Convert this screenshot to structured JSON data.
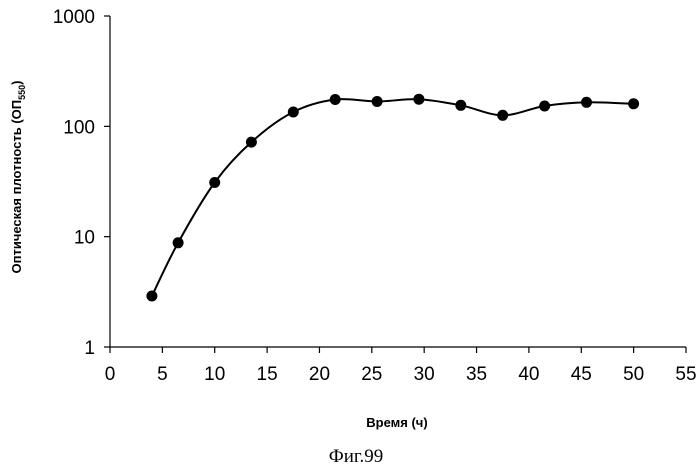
{
  "chart_data": {
    "type": "line",
    "y_scale": "log",
    "x": [
      4,
      6.5,
      10,
      13.5,
      17.5,
      21.5,
      25.5,
      29.5,
      33.5,
      37.5,
      41.5,
      45.5,
      50
    ],
    "series": [
      {
        "name": "ОП550",
        "values": [
          2.9,
          8.8,
          31,
          72,
          135,
          175,
          168,
          176,
          155,
          126,
          153,
          165,
          160
        ]
      }
    ],
    "xlim": [
      0,
      55
    ],
    "ylim": [
      1,
      1000
    ],
    "x_ticks": [
      0,
      5,
      10,
      15,
      20,
      25,
      30,
      35,
      40,
      45,
      50,
      55
    ],
    "y_ticks": [
      1,
      10,
      100,
      1000
    ],
    "xlabel": "Время (ч)",
    "ylabel_main": "Оптическая плотность (ОП",
    "ylabel_sub": "550",
    "ylabel_close": ")",
    "grid": false,
    "legend": "none",
    "caption": "Фиг.99"
  }
}
